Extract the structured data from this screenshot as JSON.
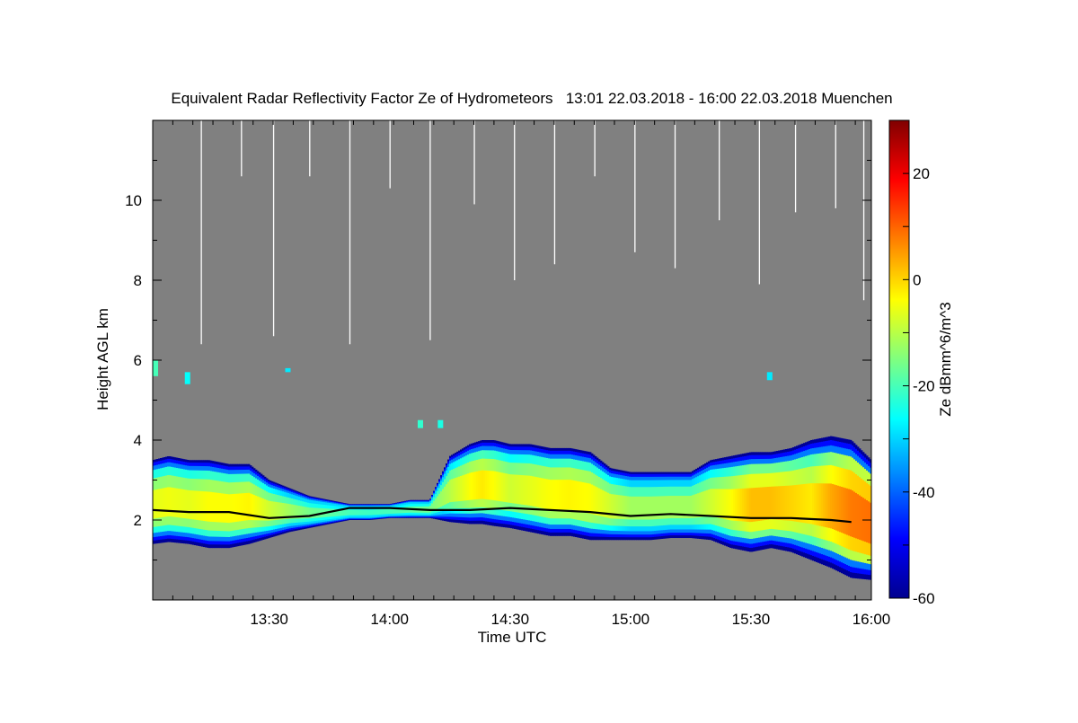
{
  "chart_data": {
    "type": "heatmap",
    "title": "Equivalent Radar Reflectivity Factor Ze of Hydrometeors   13:01 22.03.2018 - 16:00 22.03.2018 Muenchen",
    "xlabel": "Time UTC",
    "ylabel": "Height AGL km",
    "x_ticks": [
      {
        "label": "13:30",
        "value": 810
      },
      {
        "label": "14:00",
        "value": 840
      },
      {
        "label": "14:30",
        "value": 870
      },
      {
        "label": "15:00",
        "value": 900
      },
      {
        "label": "15:30",
        "value": 930
      },
      {
        "label": "16:00",
        "value": 960
      }
    ],
    "xlim": [
      "13:01",
      "16:00"
    ],
    "y_ticks": [
      2,
      4,
      6,
      8,
      10
    ],
    "ylim": [
      0,
      12
    ],
    "colorbar": {
      "label": "Ze dBmm^6/m^3",
      "range": [
        -60,
        30
      ],
      "ticks": [
        -60,
        -40,
        -20,
        0,
        20
      ],
      "colormap": "jet"
    },
    "background_color": "#808080",
    "cloud_layer": {
      "time_minutes": [
        781,
        785,
        790,
        795,
        800,
        805,
        810,
        815,
        820,
        825,
        830,
        835,
        840,
        845,
        850,
        855,
        860,
        863,
        866,
        870,
        875,
        880,
        885,
        890,
        895,
        900,
        905,
        910,
        915,
        920,
        925,
        930,
        935,
        940,
        945,
        950,
        955,
        960
      ],
      "base_km": [
        1.4,
        1.45,
        1.4,
        1.3,
        1.3,
        1.4,
        1.55,
        1.7,
        1.8,
        1.9,
        2.0,
        2.0,
        2.05,
        2.05,
        2.05,
        1.95,
        1.9,
        1.9,
        1.85,
        1.8,
        1.7,
        1.6,
        1.6,
        1.5,
        1.5,
        1.5,
        1.5,
        1.55,
        1.55,
        1.5,
        1.3,
        1.2,
        1.3,
        1.2,
        1.0,
        0.8,
        0.55,
        0.5
      ],
      "top_km": [
        3.5,
        3.6,
        3.5,
        3.5,
        3.4,
        3.4,
        3.0,
        2.8,
        2.6,
        2.5,
        2.4,
        2.4,
        2.4,
        2.5,
        2.5,
        3.6,
        3.9,
        4.0,
        4.0,
        3.9,
        3.9,
        3.8,
        3.8,
        3.7,
        3.3,
        3.2,
        3.2,
        3.2,
        3.2,
        3.5,
        3.6,
        3.7,
        3.7,
        3.8,
        4.0,
        4.1,
        4.0,
        3.5
      ],
      "core_dbz": [
        -6,
        -5,
        -6,
        -4,
        -4,
        -3,
        -8,
        -12,
        -16,
        -18,
        -20,
        -21,
        -20,
        -18,
        -16,
        -10,
        -4,
        -2,
        -4,
        -8,
        -6,
        -4,
        -3,
        -4,
        -8,
        -12,
        -12,
        -12,
        -12,
        -8,
        -4,
        2,
        2,
        0,
        -2,
        4,
        8,
        9
      ]
    },
    "lidar_cloud_base": {
      "time_minutes": [
        781,
        790,
        800,
        810,
        820,
        830,
        840,
        850,
        860,
        870,
        880,
        890,
        900,
        910,
        920,
        930,
        940,
        950,
        955
      ],
      "height_km": [
        2.25,
        2.2,
        2.2,
        2.05,
        2.1,
        2.3,
        2.3,
        2.25,
        2.25,
        2.3,
        2.25,
        2.2,
        2.1,
        2.15,
        2.1,
        2.05,
        2.05,
        2.0,
        1.95
      ]
    },
    "upper_echoes": [
      {
        "time_minutes": 781,
        "bottom_km": 5.6,
        "top_km": 6.0,
        "dbz": -20
      },
      {
        "time_minutes": 789,
        "bottom_km": 5.4,
        "top_km": 5.7,
        "dbz": -26
      },
      {
        "time_minutes": 814,
        "bottom_km": 5.7,
        "top_km": 5.8,
        "dbz": -28
      },
      {
        "time_minutes": 847,
        "bottom_km": 4.3,
        "top_km": 4.5,
        "dbz": -22
      },
      {
        "time_minutes": 852,
        "bottom_km": 4.3,
        "top_km": 4.5,
        "dbz": -24
      },
      {
        "time_minutes": 934,
        "bottom_km": 5.5,
        "top_km": 5.7,
        "dbz": -28
      }
    ],
    "missing_profiles_minutes": [
      793,
      803,
      811,
      820,
      830,
      840,
      850,
      861,
      871,
      881,
      891,
      901,
      911,
      922,
      932,
      941,
      951,
      958
    ]
  }
}
